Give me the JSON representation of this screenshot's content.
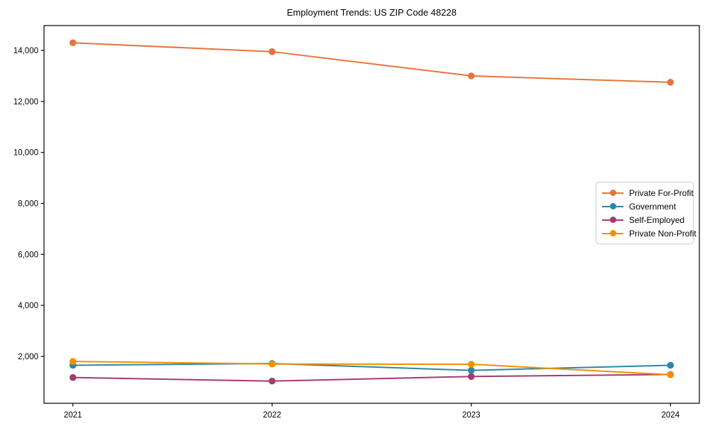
{
  "title": "Employment Trends: US ZIP Code 48228",
  "chart_data": {
    "type": "line",
    "title": "Employment Trends: US ZIP Code 48228",
    "xlabel": "",
    "ylabel": "",
    "grid": false,
    "legend_position": "center-right",
    "x": [
      2021,
      2022,
      2023,
      2024
    ],
    "x_tick_labels": [
      "2021",
      "2022",
      "2023",
      "2024"
    ],
    "y_ticks": [
      2000,
      4000,
      6000,
      8000,
      10000,
      12000,
      14000
    ],
    "y_tick_labels": [
      "2,000",
      "4,000",
      "6,000",
      "8,000",
      "10,000",
      "12,000",
      "14,000"
    ],
    "xlim": [
      2020.855,
      2024.145
    ],
    "ylim": [
      160,
      14975
    ],
    "series": [
      {
        "name": "Private For-Profit",
        "color": "#E8743B",
        "values": [
          14300,
          13950,
          13000,
          12750
        ]
      },
      {
        "name": "Government",
        "color": "#2E86AB",
        "values": [
          1650,
          1720,
          1450,
          1650
        ]
      },
      {
        "name": "Self-Employed",
        "color": "#A23B72",
        "values": [
          1170,
          1030,
          1210,
          1290
        ]
      },
      {
        "name": "Private Non-Profit",
        "color": "#F18F01",
        "values": [
          1800,
          1700,
          1690,
          1280
        ]
      }
    ]
  }
}
